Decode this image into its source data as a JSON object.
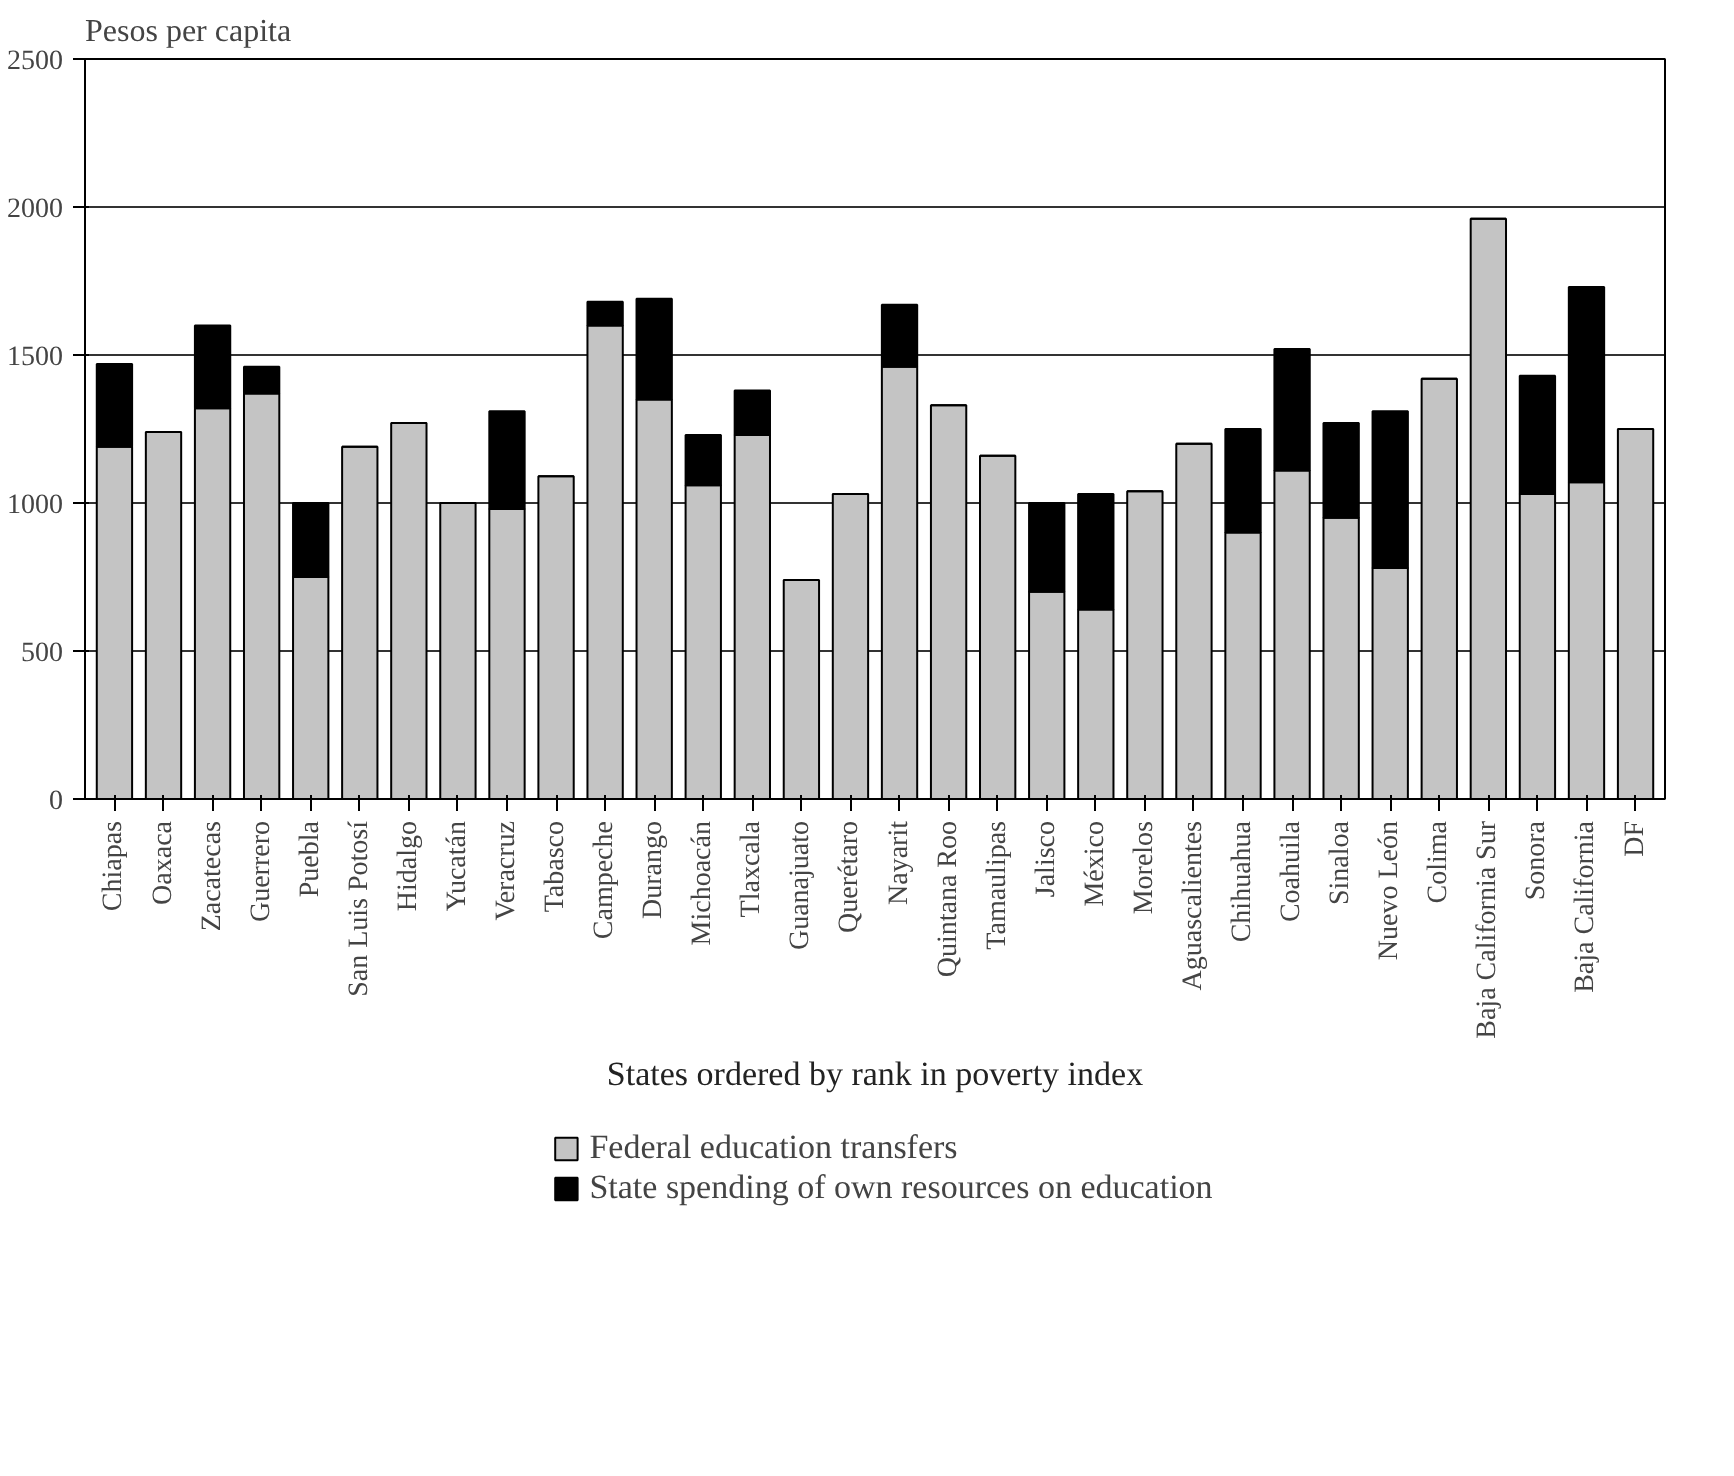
{
  "chart_data": {
    "type": "bar",
    "stacked": true,
    "ylabel": "Pesos per capita",
    "xlabel": "States ordered by rank in poverty index",
    "categories": [
      "Chiapas",
      "Oaxaca",
      "Zacatecas",
      "Guerrero",
      "Puebla",
      "San Luis Potosí",
      "Hidalgo",
      "Yucatán",
      "Veracruz",
      "Tabasco",
      "Campeche",
      "Durango",
      "Michoacán",
      "Tlaxcala",
      "Guanajuato",
      "Querétaro",
      "Nayarit",
      "Quintana Roo",
      "Tamaulipas",
      "Jalisco",
      "México",
      "Morelos",
      "Aguascalientes",
      "Chihuahua",
      "Coahuila",
      "Sinaloa",
      "Nuevo León",
      "Colima",
      "Baja California Sur",
      "Sonora",
      "Baja California",
      "DF"
    ],
    "series": [
      {
        "name": "Federal education transfers",
        "color": "#c4c4c4",
        "values": [
          1190,
          1240,
          1320,
          1370,
          750,
          1190,
          1270,
          1000,
          980,
          1090,
          1600,
          1350,
          1060,
          1230,
          740,
          1030,
          1460,
          1330,
          1160,
          700,
          640,
          1040,
          1200,
          900,
          1110,
          950,
          780,
          1420,
          1960,
          1030,
          1070,
          1250
        ]
      },
      {
        "name": "State spending of own resources on education",
        "color": "#000000",
        "values": [
          280,
          0,
          280,
          90,
          250,
          0,
          0,
          0,
          330,
          0,
          80,
          340,
          170,
          150,
          0,
          0,
          210,
          0,
          0,
          300,
          390,
          0,
          0,
          350,
          410,
          320,
          530,
          0,
          0,
          400,
          660,
          0
        ]
      }
    ],
    "ylim": [
      0,
      2500
    ],
    "yticks": [
      0,
      500,
      1000,
      1500,
      2000,
      2500
    ],
    "grid": "y",
    "legend": "bottom"
  }
}
